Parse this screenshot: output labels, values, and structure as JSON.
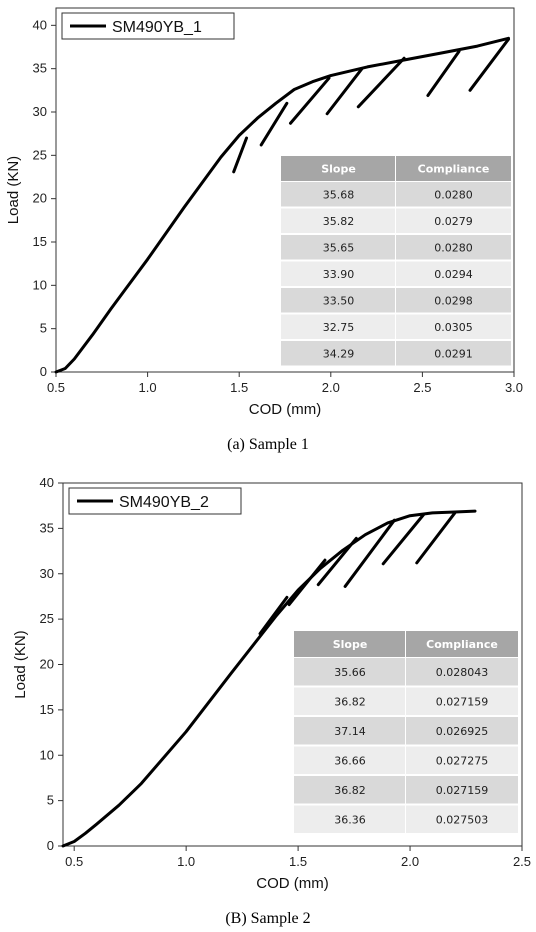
{
  "chart_data": [
    {
      "type": "line",
      "xlabel": "COD (mm)",
      "ylabel": "Load (KN)",
      "xlim": [
        0.5,
        3.0
      ],
      "ylim": [
        0,
        42
      ],
      "xticks": [
        "0.5",
        "1.0",
        "1.5",
        "2.0",
        "2.5",
        "3.0"
      ],
      "yticks": [
        "0",
        "5",
        "10",
        "15",
        "20",
        "25",
        "30",
        "35",
        "40"
      ],
      "legend_placement": "top-left",
      "series": [
        {
          "name": "SM490YB_1",
          "x": [
            0.5,
            0.55,
            0.6,
            0.7,
            0.8,
            1.0,
            1.2,
            1.4,
            1.5,
            1.6,
            1.7,
            1.8,
            1.9,
            2.0,
            2.2,
            2.4,
            2.6,
            2.8,
            2.97
          ],
          "y": [
            0,
            0.4,
            1.5,
            4.3,
            7.3,
            13.0,
            19.0,
            24.8,
            27.3,
            29.3,
            31.0,
            32.6,
            33.5,
            34.2,
            35.2,
            36.0,
            36.8,
            37.6,
            38.5
          ]
        }
      ],
      "unloading": [
        {
          "x": [
            1.47,
            1.54
          ],
          "y": [
            23.1,
            27.0
          ]
        },
        {
          "x": [
            1.62,
            1.76
          ],
          "y": [
            26.2,
            31.0
          ]
        },
        {
          "x": [
            1.78,
            1.99
          ],
          "y": [
            28.7,
            33.9
          ]
        },
        {
          "x": [
            1.98,
            2.17
          ],
          "y": [
            29.8,
            35.0
          ]
        },
        {
          "x": [
            2.15,
            2.4
          ],
          "y": [
            30.6,
            36.2
          ]
        },
        {
          "x": [
            2.53,
            2.7
          ],
          "y": [
            31.9,
            37.0
          ]
        },
        {
          "x": [
            2.76,
            2.97
          ],
          "y": [
            32.5,
            38.4
          ]
        }
      ],
      "table": {
        "columns": [
          "Slope",
          "Compliance"
        ],
        "rows": [
          [
            "35.68",
            "0.0280"
          ],
          [
            "35.82",
            "0.0279"
          ],
          [
            "35.65",
            "0.0280"
          ],
          [
            "33.90",
            "0.0294"
          ],
          [
            "33.50",
            "0.0298"
          ],
          [
            "32.75",
            "0.0305"
          ],
          [
            "34.29",
            "0.0291"
          ]
        ]
      }
    },
    {
      "type": "line",
      "xlabel": "COD (mm)",
      "ylabel": "Load (KN)",
      "xlim": [
        0.45,
        2.5
      ],
      "ylim": [
        0,
        40
      ],
      "xticks": [
        "0.5",
        "1.0",
        "1.5",
        "2.0",
        "2.5"
      ],
      "yticks": [
        "0",
        "5",
        "10",
        "15",
        "20",
        "25",
        "30",
        "35",
        "40"
      ],
      "legend_placement": "top-left",
      "series": [
        {
          "name": "SM490YB_2",
          "x": [
            0.45,
            0.5,
            0.55,
            0.6,
            0.7,
            0.8,
            1.0,
            1.2,
            1.4,
            1.5,
            1.6,
            1.7,
            1.8,
            1.9,
            2.0,
            2.1,
            2.2,
            2.29
          ],
          "y": [
            0,
            0.5,
            1.4,
            2.4,
            4.5,
            6.9,
            12.6,
            19.0,
            25.3,
            28.2,
            30.6,
            32.6,
            34.3,
            35.6,
            36.4,
            36.7,
            36.8,
            36.9
          ]
        }
      ],
      "unloading": [
        {
          "x": [
            1.33,
            1.45
          ],
          "y": [
            23.4,
            27.4
          ]
        },
        {
          "x": [
            1.46,
            1.62
          ],
          "y": [
            26.6,
            31.5
          ]
        },
        {
          "x": [
            1.59,
            1.76
          ],
          "y": [
            28.8,
            33.9
          ]
        },
        {
          "x": [
            1.71,
            1.93
          ],
          "y": [
            28.6,
            35.9
          ]
        },
        {
          "x": [
            1.88,
            2.06
          ],
          "y": [
            31.1,
            36.5
          ]
        },
        {
          "x": [
            2.03,
            2.2
          ],
          "y": [
            31.2,
            36.7
          ]
        }
      ],
      "table": {
        "columns": [
          "Slope",
          "Compliance"
        ],
        "rows": [
          [
            "35.66",
            "0.028043"
          ],
          [
            "36.82",
            "0.027159"
          ],
          [
            "37.14",
            "0.026925"
          ],
          [
            "36.66",
            "0.027275"
          ],
          [
            "36.82",
            "0.027159"
          ],
          [
            "36.36",
            "0.027503"
          ]
        ]
      }
    }
  ],
  "captions": [
    "(a) Sample 1",
    "(B) Sample 2"
  ],
  "colors": {
    "curve": "#000000",
    "table_header": "#a6a6a6",
    "table_row_dark": "#d9d9d9",
    "table_row_light": "#ededed"
  }
}
